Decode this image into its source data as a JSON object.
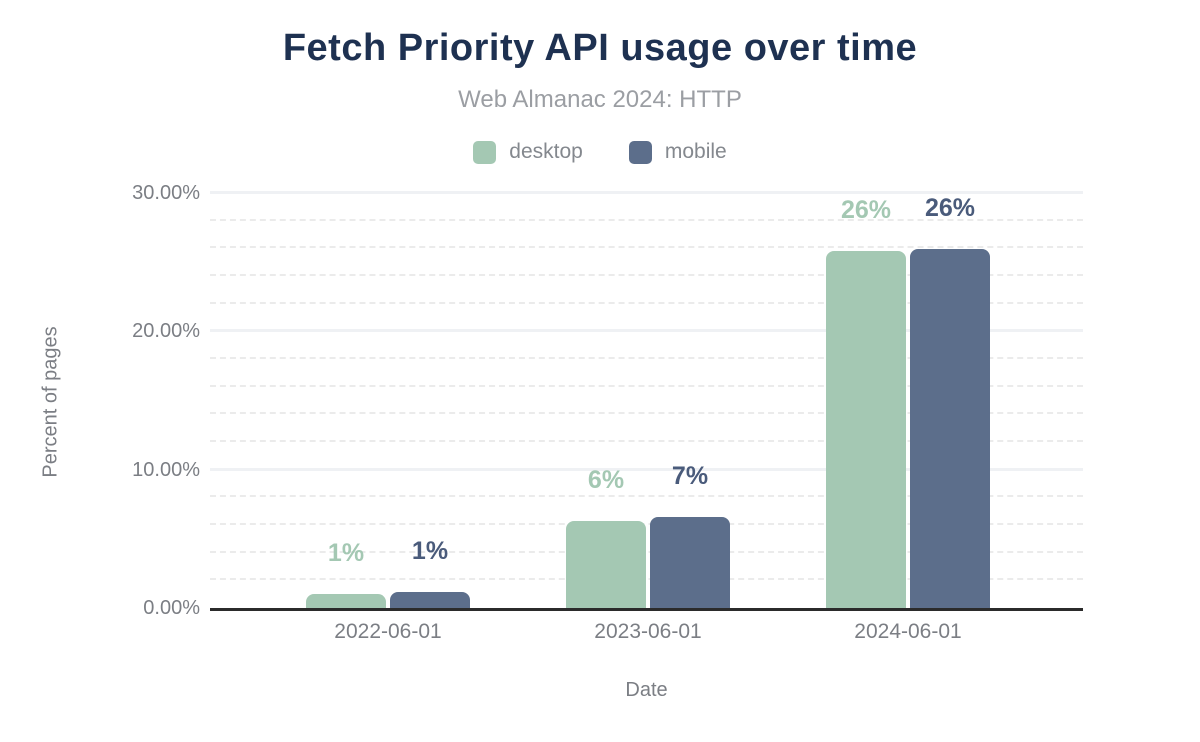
{
  "chart_data": {
    "type": "bar",
    "title": "Fetch Priority API usage over time",
    "subtitle": "Web Almanac 2024: HTTP",
    "xlabel": "Date",
    "ylabel": "Percent of pages",
    "categories": [
      "2022-06-01",
      "2023-06-01",
      "2024-06-01"
    ],
    "series": [
      {
        "name": "desktop",
        "color": "#a4c8b3",
        "label_color": "#a4c8b3",
        "values": [
          1,
          6,
          26
        ],
        "values_precise": [
          1.0,
          6.3,
          25.8
        ],
        "labels": [
          "1%",
          "6%",
          "26%"
        ]
      },
      {
        "name": "mobile",
        "color": "#5c6e8b",
        "label_color": "#4a5b7b",
        "values": [
          1,
          7,
          26
        ],
        "values_precise": [
          1.15,
          6.55,
          25.95
        ],
        "labels": [
          "1%",
          "7%",
          "26%"
        ]
      }
    ],
    "ylim": [
      0,
      30
    ],
    "yticks": [
      {
        "value": 0,
        "label": "0.00%"
      },
      {
        "value": 10,
        "label": "10.00%"
      },
      {
        "value": 20,
        "label": "20.00%"
      },
      {
        "value": 30,
        "label": "30.00%"
      }
    ],
    "minor_grid_step": 2,
    "grid": true,
    "legend_position": "top",
    "axis_color": "#2b2b2b",
    "title_color": "#1e3151",
    "text_color": "#7b7e84"
  }
}
